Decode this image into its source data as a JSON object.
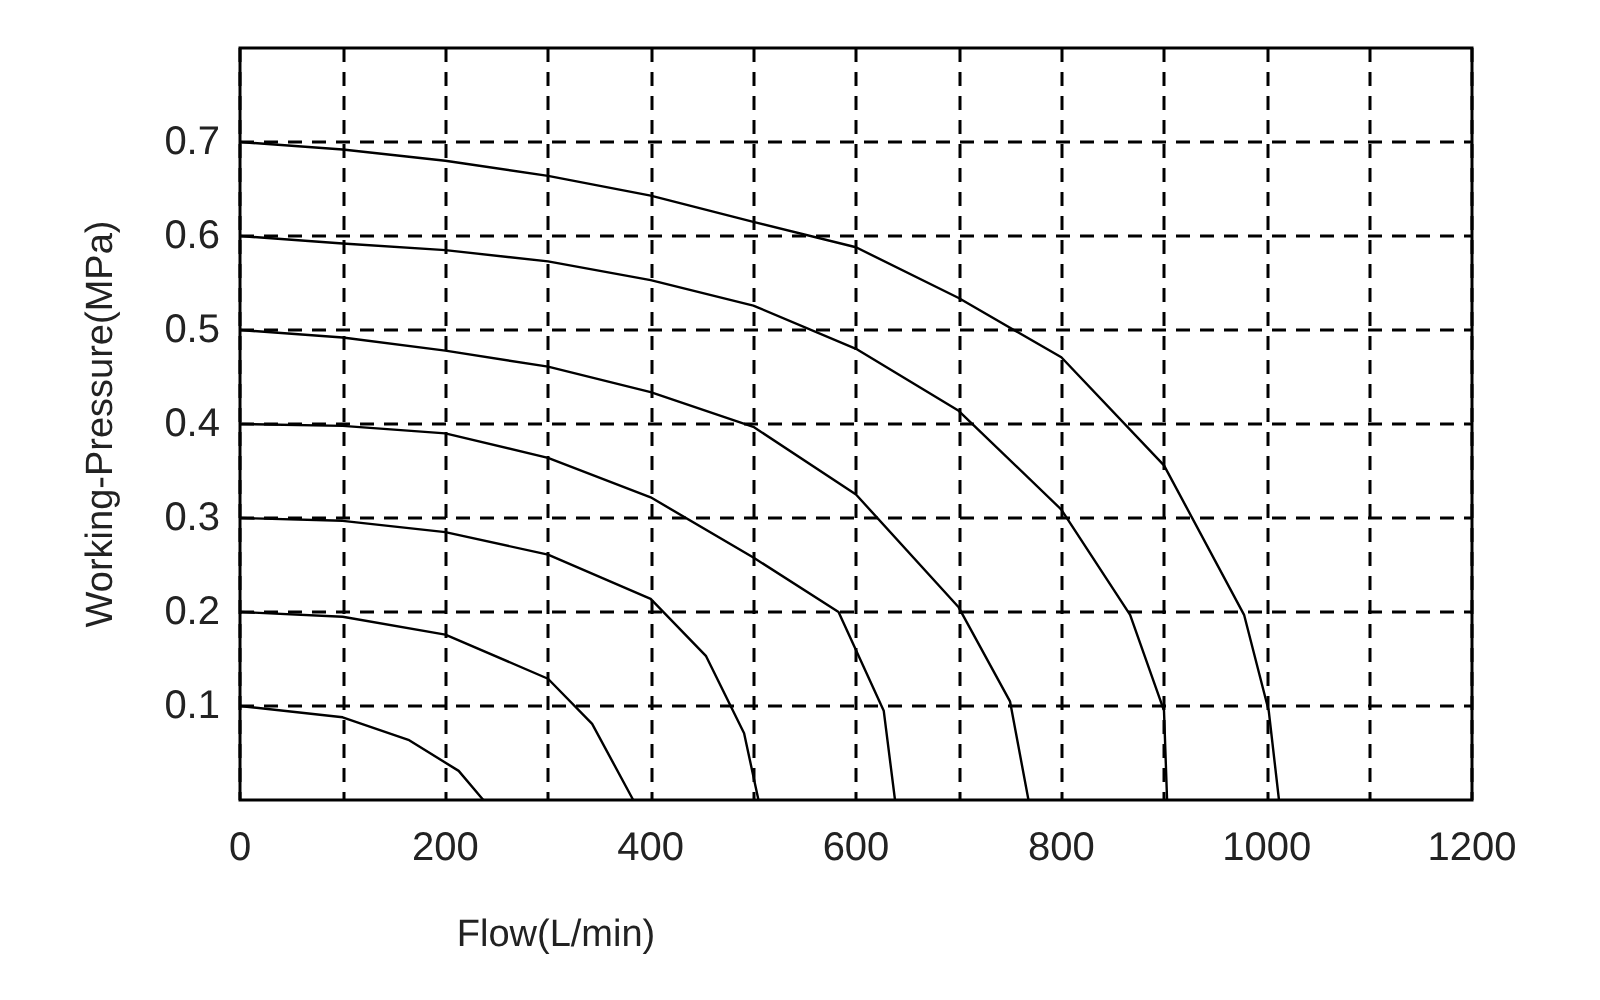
{
  "chart_data": {
    "type": "line",
    "xlabel": "Flow(L/min)",
    "ylabel": "Working-Pressure(MPa)",
    "xlim": [
      0,
      1200
    ],
    "ylim": [
      0,
      0.8
    ],
    "xticks": [
      0,
      {
        "value": 100,
        "label": null
      },
      200,
      {
        "value": 300,
        "label": null
      },
      400,
      {
        "value": 500,
        "label": null
      },
      600,
      {
        "value": 700,
        "label": null
      },
      800,
      {
        "value": 900,
        "label": null
      },
      1000,
      {
        "value": 1100,
        "label": null
      },
      1200
    ],
    "yticks": [
      0.1,
      0.2,
      0.3,
      0.4,
      0.5,
      0.6,
      0.7
    ],
    "grid": true,
    "marker": "none",
    "line_style": "solid",
    "series": [
      {
        "color": "#000000",
        "x": [
          0,
          100,
          164,
          213,
          237
        ],
        "values": [
          0.1,
          0.088,
          0.064,
          0.031,
          0
        ]
      },
      {
        "color": "#000000",
        "x": [
          0,
          100,
          200,
          300,
          343,
          383
        ],
        "values": [
          0.2,
          0.195,
          0.176,
          0.129,
          0.081,
          0
        ]
      },
      {
        "color": "#000000",
        "x": [
          0,
          100,
          200,
          300,
          400,
          454,
          491,
          505
        ],
        "values": [
          0.3,
          0.297,
          0.285,
          0.261,
          0.214,
          0.153,
          0.071,
          0
        ]
      },
      {
        "color": "#000000",
        "x": [
          0,
          100,
          200,
          300,
          400,
          500,
          583,
          627,
          638
        ],
        "values": [
          0.4,
          0.398,
          0.39,
          0.364,
          0.322,
          0.258,
          0.2,
          0.095,
          0
        ]
      },
      {
        "color": "#000000",
        "x": [
          0,
          100,
          200,
          300,
          400,
          500,
          600,
          700,
          750,
          768
        ],
        "values": [
          0.5,
          0.492,
          0.478,
          0.461,
          0.434,
          0.397,
          0.325,
          0.205,
          0.105,
          0
        ]
      },
      {
        "color": "#000000",
        "x": [
          0,
          100,
          200,
          300,
          400,
          500,
          600,
          700,
          800,
          867,
          900,
          903
        ],
        "values": [
          0.6,
          0.592,
          0.585,
          0.573,
          0.553,
          0.526,
          0.48,
          0.414,
          0.309,
          0.197,
          0.095,
          0
        ]
      },
      {
        "color": "#000000",
        "x": [
          0,
          100,
          200,
          300,
          400,
          500,
          600,
          700,
          800,
          900,
          978,
          1002,
          1012
        ],
        "values": [
          0.7,
          0.692,
          0.68,
          0.664,
          0.643,
          0.615,
          0.588,
          0.534,
          0.471,
          0.356,
          0.197,
          0.095,
          0
        ]
      }
    ]
  }
}
